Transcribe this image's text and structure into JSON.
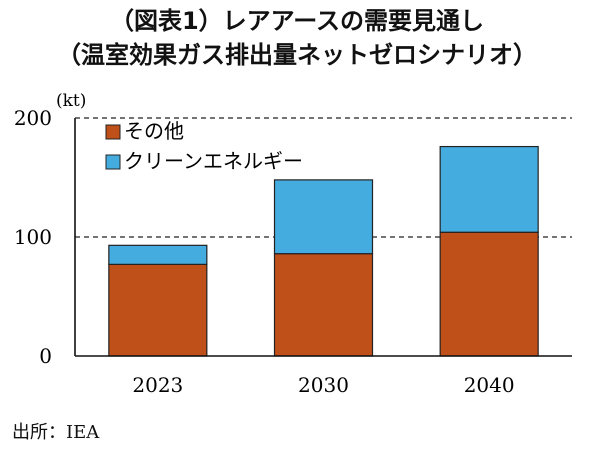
{
  "title": "（図表1）レアアースの需要見通し",
  "subtitle": "（温室効果ガス排出量ネットゼロシナリオ）",
  "source": "出所：IEA",
  "chart_data": {
    "type": "bar",
    "stacked": true,
    "unit_label": "(kt)",
    "categories": [
      "2023",
      "2030",
      "2040"
    ],
    "series": [
      {
        "name": "その他",
        "color": "#c0501a",
        "values": [
          77,
          86,
          104
        ]
      },
      {
        "name": "クリーンエネルギー",
        "color": "#45acdf",
        "values": [
          16,
          62,
          72
        ]
      }
    ],
    "ylim": [
      0,
      200
    ],
    "yticks": [
      "0",
      "100",
      "200"
    ],
    "grid": "dashed horizontal at 100 and 200",
    "legend_position": "top-left"
  }
}
